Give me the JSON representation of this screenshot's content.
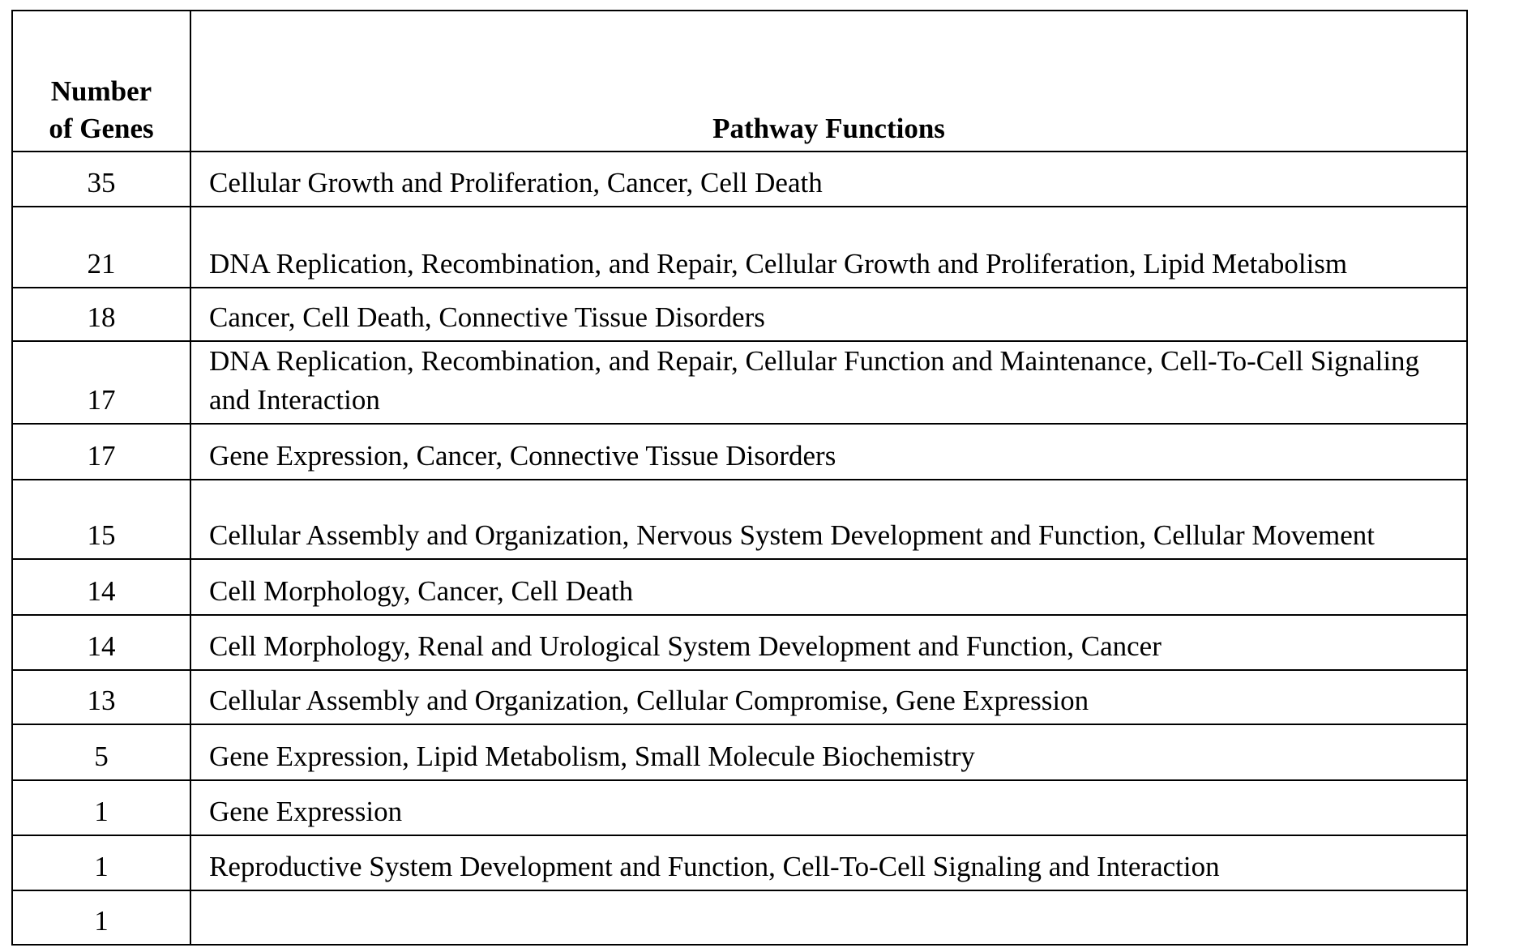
{
  "table": {
    "headers": [
      "Number of Genes",
      "Pathway Functions"
    ],
    "header_lines": [
      "Number",
      "of Genes"
    ],
    "rows": [
      {
        "genes": "35",
        "functions": "Cellular Growth and Proliferation, Cancer, Cell Death"
      },
      {
        "genes": "21",
        "functions": "DNA Replication, Recombination, and Repair, Cellular Growth and Proliferation, Lipid Metabolism"
      },
      {
        "genes": "18",
        "functions": "Cancer, Cell Death, Connective Tissue Disorders"
      },
      {
        "genes": "17",
        "functions": "DNA Replication, Recombination, and Repair, Cellular Function and Maintenance, Cell-To-Cell Signaling and Interaction"
      },
      {
        "genes": "17",
        "functions": "Gene Expression, Cancer, Connective Tissue Disorders"
      },
      {
        "genes": "15",
        "functions": "Cellular Assembly and Organization, Nervous System Development and Function, Cellular Movement"
      },
      {
        "genes": "14",
        "functions": "Cell Morphology, Cancer, Cell Death"
      },
      {
        "genes": "14",
        "functions": "Cell Morphology, Renal and Urological System Development and Function, Cancer"
      },
      {
        "genes": "13",
        "functions": "Cellular Assembly and Organization, Cellular Compromise, Gene Expression"
      },
      {
        "genes": "5",
        "functions": "Gene Expression, Lipid Metabolism, Small Molecule Biochemistry"
      },
      {
        "genes": "1",
        "functions": "Gene Expression"
      },
      {
        "genes": "1",
        "functions": "Reproductive System Development and Function, Cell-To-Cell Signaling and Interaction"
      },
      {
        "genes": "1",
        "functions": ""
      }
    ]
  }
}
